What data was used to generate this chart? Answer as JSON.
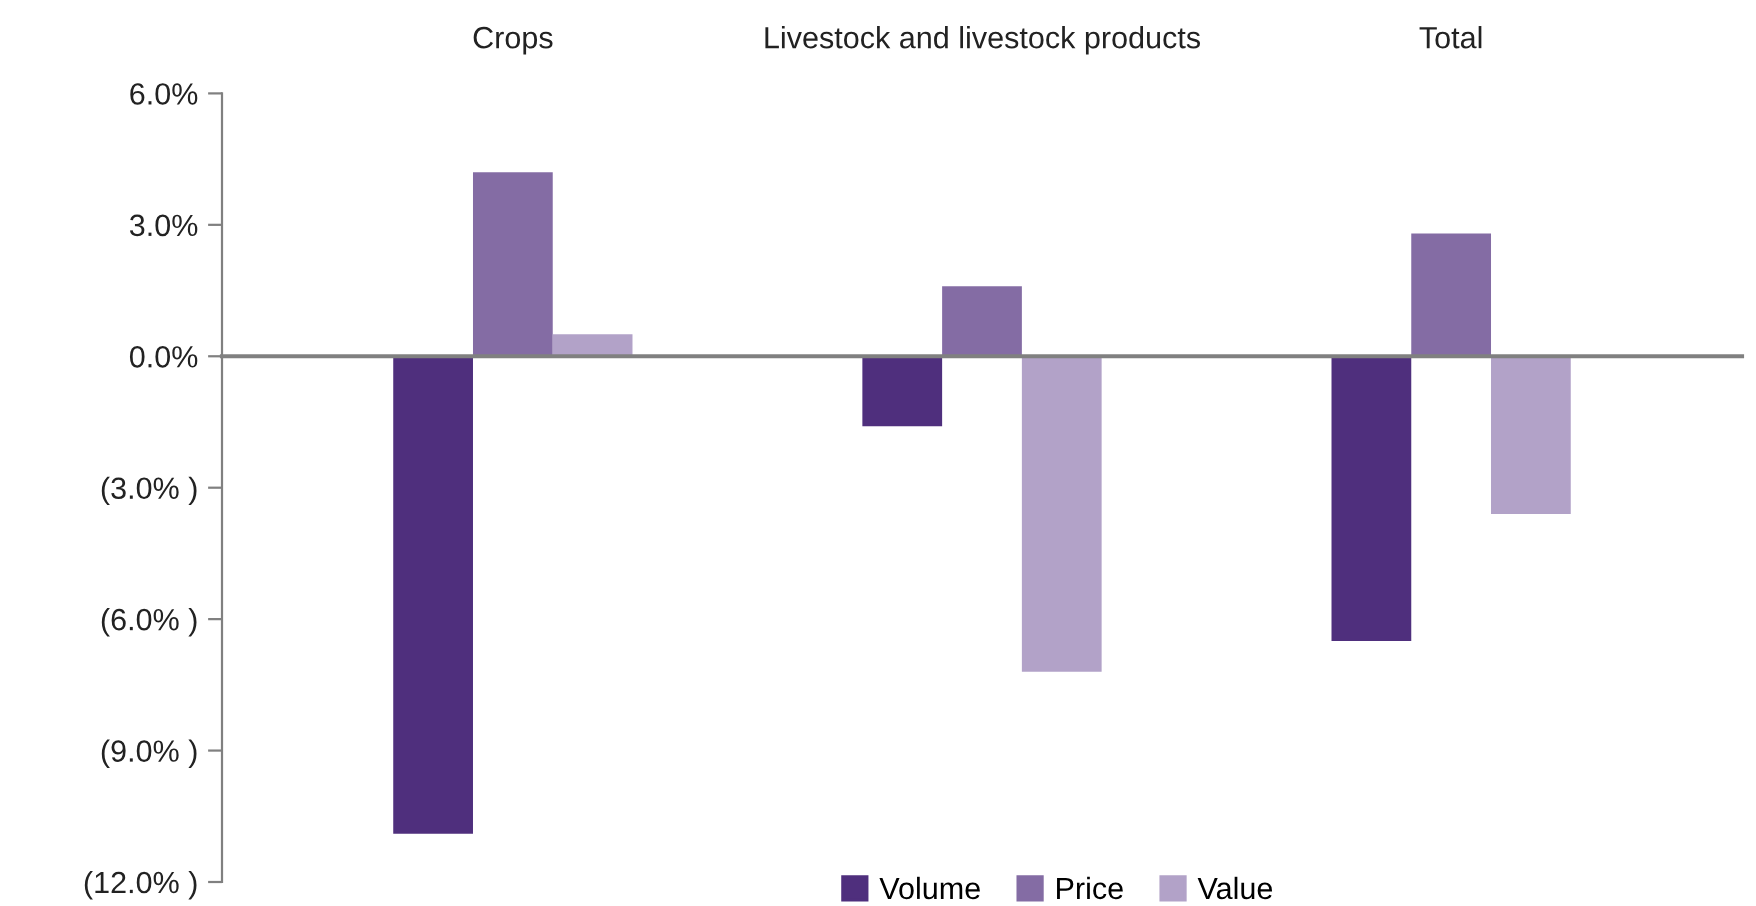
{
  "chart_data": {
    "type": "bar",
    "categories": [
      "Crops",
      "Livestock and livestock products",
      "Total"
    ],
    "series": [
      {
        "name": "Volume",
        "color": "#4f2f7d",
        "values": [
          -10.9,
          -1.6,
          -6.5
        ]
      },
      {
        "name": "Price",
        "color": "#846ca4",
        "values": [
          4.2,
          1.6,
          2.8
        ]
      },
      {
        "name": "Value",
        "color": "#b2a2c8",
        "values": [
          0.5,
          -7.2,
          -3.6
        ]
      }
    ],
    "ylim": [
      -12,
      6
    ],
    "yticks": [
      {
        "value": 6,
        "label": "6.0%"
      },
      {
        "value": 3,
        "label": "3.0%"
      },
      {
        "value": 0,
        "label": "0.0%"
      },
      {
        "value": -3,
        "label": "(3.0% )"
      },
      {
        "value": -6,
        "label": "(6.0% )"
      },
      {
        "value": -9,
        "label": "(9.0% )"
      },
      {
        "value": -12,
        "label": "(12.0% )"
      }
    ],
    "legend": "bottom"
  }
}
